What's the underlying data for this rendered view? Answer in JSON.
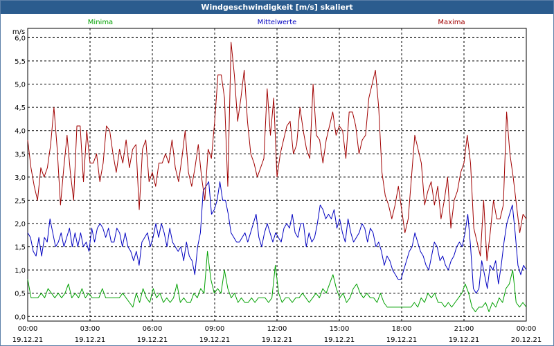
{
  "chart_data": {
    "type": "line",
    "title": "Windgeschwindigkeit [m/s] skaliert",
    "ylabel": "m/s",
    "ylim": [
      -0.1,
      6.2
    ],
    "xlim": [
      0,
      24
    ],
    "grid": true,
    "yticks": [
      "0,0",
      "0,5",
      "1,0",
      "1,5",
      "2,0",
      "2,5",
      "3,0",
      "3,5",
      "4,0",
      "4,5",
      "5,0",
      "5,5",
      "6,0"
    ],
    "xticks": [
      {
        "time": "00:00",
        "date": "19.12.21"
      },
      {
        "time": "03:00",
        "date": "19.12.21"
      },
      {
        "time": "06:00",
        "date": "19.12.21"
      },
      {
        "time": "09:00",
        "date": "19.12.21"
      },
      {
        "time": "12:00",
        "date": "19.12.21"
      },
      {
        "time": "15:00",
        "date": "19.12.21"
      },
      {
        "time": "18:00",
        "date": "19.12.21"
      },
      {
        "time": "21:00",
        "date": "19.12.21"
      },
      {
        "time": "00:00",
        "date": "20.12.21"
      }
    ],
    "legend": "top",
    "series": [
      {
        "name": "Minima",
        "color": "#00a000",
        "values": [
          0.8,
          0.4,
          0.4,
          0.4,
          0.5,
          0.4,
          0.6,
          0.5,
          0.4,
          0.5,
          0.4,
          0.5,
          0.7,
          0.4,
          0.5,
          0.4,
          0.6,
          0.4,
          0.5,
          0.4,
          0.4,
          0.4,
          0.6,
          0.4,
          0.4,
          0.4,
          0.4,
          0.4,
          0.5,
          0.4,
          0.3,
          0.2,
          0.5,
          0.3,
          0.6,
          0.4,
          0.3,
          0.6,
          0.4,
          0.5,
          0.3,
          0.4,
          0.3,
          0.4,
          0.7,
          0.3,
          0.4,
          0.3,
          0.3,
          0.5,
          0.4,
          0.6,
          0.5,
          1.4,
          0.8,
          0.5,
          0.6,
          0.5,
          1.0,
          0.6,
          0.4,
          0.5,
          0.3,
          0.4,
          0.3,
          0.3,
          0.4,
          0.3,
          0.4,
          0.4,
          0.4,
          0.3,
          0.4,
          1.1,
          0.5,
          0.3,
          0.4,
          0.4,
          0.3,
          0.4,
          0.4,
          0.5,
          0.4,
          0.3,
          0.4,
          0.5,
          0.4,
          0.6,
          0.5,
          0.7,
          0.9,
          0.6,
          0.4,
          0.5,
          0.3,
          0.4,
          0.6,
          0.7,
          0.5,
          0.4,
          0.5,
          0.4,
          0.4,
          0.3,
          0.5,
          0.3,
          0.2,
          0.2,
          0.2,
          0.2,
          0.2,
          0.2,
          0.2,
          0.2,
          0.3,
          0.2,
          0.4,
          0.3,
          0.5,
          0.4,
          0.5,
          0.3,
          0.3,
          0.2,
          0.3,
          0.2,
          0.3,
          0.4,
          0.5,
          0.7,
          0.5,
          0.2,
          0.1,
          0.2,
          0.2,
          0.3,
          0.1,
          0.3,
          0.2,
          0.4,
          0.3,
          0.6,
          0.7,
          1.0,
          0.3,
          0.2,
          0.3,
          0.2
        ]
      },
      {
        "name": "Mittelwerte",
        "color": "#0000c0",
        "values": [
          1.8,
          1.7,
          1.4,
          1.3,
          1.7,
          1.3,
          1.7,
          1.6,
          2.1,
          1.8,
          1.5,
          1.6,
          1.8,
          1.5,
          1.7,
          1.9,
          1.5,
          1.8,
          1.5,
          1.8,
          1.5,
          1.6,
          1.4,
          1.9,
          1.6,
          1.9,
          2.0,
          1.9,
          1.7,
          1.9,
          1.6,
          1.6,
          1.9,
          1.8,
          1.5,
          1.8,
          1.5,
          1.4,
          1.2,
          1.4,
          1.1,
          1.6,
          1.7,
          1.8,
          1.5,
          1.7,
          2.0,
          1.7,
          2.0,
          1.8,
          1.5,
          1.9,
          1.6,
          1.5,
          1.4,
          1.5,
          1.2,
          1.6,
          1.3,
          1.2,
          0.9,
          1.5,
          1.8,
          2.7,
          2.8,
          2.9,
          2.2,
          2.3,
          2.5,
          2.9,
          2.5,
          2.5,
          2.2,
          1.8,
          1.7,
          1.6,
          1.6,
          1.7,
          1.8,
          1.6,
          1.8,
          2.0,
          2.2,
          1.7,
          1.5,
          1.8,
          2.0,
          1.8,
          1.6,
          1.8,
          1.7,
          1.6,
          1.9,
          2.0,
          1.9,
          2.2,
          1.8,
          1.7,
          2.0,
          2.0,
          1.5,
          1.8,
          1.6,
          1.7,
          2.0,
          2.4,
          2.3,
          2.1,
          2.2,
          2.1,
          2.3,
          1.9,
          2.1,
          1.8,
          1.6,
          2.1,
          1.8,
          1.6,
          1.7,
          1.8,
          2.0,
          1.9,
          1.6,
          1.9,
          1.8,
          1.5,
          1.6,
          1.4,
          1.1,
          1.3,
          1.2,
          1.0,
          0.9,
          0.8,
          0.8,
          1.0,
          1.2,
          1.4,
          1.5,
          1.8,
          1.6,
          1.4,
          1.3,
          1.1,
          1.0,
          1.3,
          1.6,
          1.5,
          1.2,
          1.3,
          1.1,
          1.0,
          1.2,
          1.3,
          1.5,
          1.6,
          1.5,
          1.8,
          2.2,
          1.5,
          0.6,
          0.5,
          0.6,
          1.2,
          0.9,
          0.6,
          1.1,
          1.0,
          1.2,
          0.7,
          1.1,
          1.6,
          2.0,
          2.2,
          2.4,
          1.8,
          1.1,
          0.9,
          1.1,
          1.0
        ]
      },
      {
        "name": "Maxima",
        "color": "#a00000",
        "values": [
          3.8,
          3.2,
          2.8,
          2.5,
          3.2,
          3.0,
          3.2,
          3.7,
          4.5,
          3.6,
          2.4,
          3.2,
          3.9,
          3.1,
          2.5,
          4.1,
          4.1,
          2.9,
          4.0,
          3.3,
          3.3,
          3.5,
          2.9,
          3.3,
          4.1,
          4.0,
          3.5,
          3.1,
          3.6,
          3.3,
          3.8,
          3.2,
          3.6,
          3.7,
          2.3,
          3.6,
          3.8,
          2.9,
          3.1,
          2.8,
          3.3,
          3.3,
          3.5,
          3.3,
          3.8,
          3.2,
          2.9,
          3.4,
          4.0,
          3.1,
          2.8,
          3.2,
          3.7,
          3.0,
          2.5,
          3.6,
          3.4,
          4.2,
          5.2,
          5.2,
          4.7,
          2.8,
          5.9,
          5.2,
          4.2,
          4.7,
          5.3,
          4.2,
          3.5,
          3.3,
          3.0,
          3.2,
          3.4,
          4.9,
          3.9,
          4.7,
          3.0,
          3.5,
          3.8,
          4.1,
          4.2,
          3.5,
          3.7,
          4.5,
          4.0,
          3.6,
          3.4,
          5.0,
          3.9,
          3.8,
          3.3,
          3.8,
          4.1,
          4.4,
          3.9,
          4.1,
          4.0,
          3.4,
          4.4,
          4.4,
          4.1,
          3.5,
          3.8,
          3.9,
          4.7,
          5.0,
          5.3,
          4.5,
          3.1,
          2.6,
          2.4,
          2.1,
          2.4,
          2.8,
          2.3,
          1.8,
          2.1,
          3.0,
          3.9,
          3.6,
          3.3,
          2.4,
          2.7,
          2.9,
          2.4,
          2.8,
          2.1,
          2.5,
          3.0,
          1.9,
          2.5,
          2.7,
          3.1,
          3.3,
          3.9,
          3.3,
          1.9,
          1.6,
          1.3,
          2.5,
          1.2,
          1.8,
          2.5,
          2.1,
          2.1,
          2.4,
          4.4,
          3.5,
          3.0,
          2.4,
          1.8,
          2.2,
          2.1
        ]
      }
    ]
  }
}
